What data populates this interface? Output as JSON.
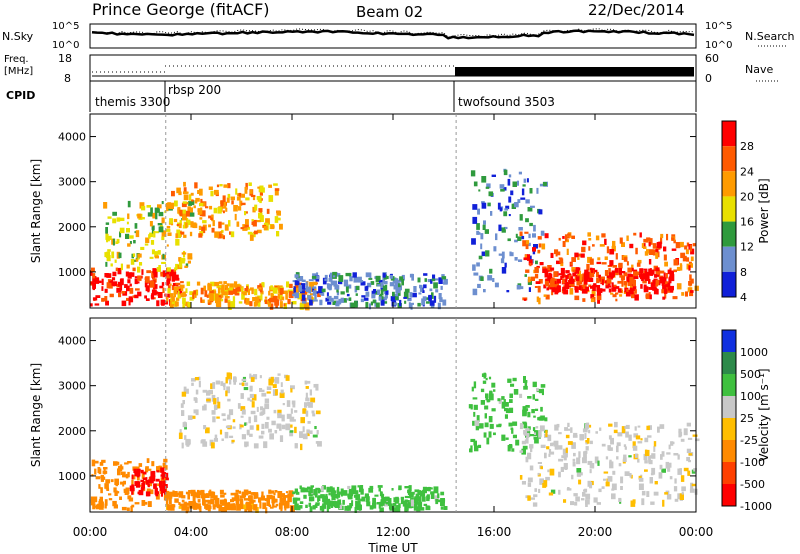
{
  "header": {
    "station": "Prince George (fitACF)",
    "beam": "Beam 02",
    "date": "22/Dec/2014"
  },
  "sky_panel": {
    "left_label": "N.Sky",
    "left_ticks": [
      "10^5",
      "10^0"
    ],
    "right_ticks": [
      "10^5",
      "10^0"
    ],
    "right_label": "N.Search"
  },
  "freq_panel": {
    "left_label_line1": "Freq.",
    "left_label_line2": "[MHz]",
    "left_ticks": [
      "18",
      "8"
    ],
    "right_ticks": [
      "60",
      "0"
    ],
    "right_label": "Nave"
  },
  "cpid_panel": {
    "label": "CPID",
    "programs": [
      {
        "name": "themis 3300",
        "start": "00:00"
      },
      {
        "name": "rbsp 200",
        "start": "03:00"
      },
      {
        "name": "twofsound 3503",
        "start": "14:30"
      }
    ]
  },
  "power_panel": {
    "ylabel": "Slant Range [km]",
    "colorbar_label": "Power [dB]",
    "colorbar_ticks": [
      "28",
      "24",
      "20",
      "16",
      "12",
      "8",
      "4"
    ],
    "colors": [
      "#ff0000",
      "#ff5a00",
      "#ff9b00",
      "#e8e000",
      "#2f9a3d",
      "#6d8fcf",
      "#1020d8"
    ]
  },
  "velocity_panel": {
    "ylabel": "Slant Range [km]",
    "colorbar_label": "Velocity [m s⁻¹]",
    "colorbar_ticks": [
      "1000",
      "500",
      "100",
      "25",
      "-25",
      "-100",
      "-500",
      "-1000"
    ],
    "colors": [
      "#1030e0",
      "#2d8a4a",
      "#3fc03f",
      "#c8c8c8",
      "#ffbe00",
      "#ff8a00",
      "#ff4000",
      "#ff0000"
    ]
  },
  "x_axis": {
    "label": "Time UT",
    "ticks": [
      "00:00",
      "04:00",
      "08:00",
      "12:00",
      "16:00",
      "20:00",
      "00:00"
    ]
  },
  "chart_data": {
    "type": "heatmap",
    "x_unit": "hours UT",
    "xlim": [
      0,
      24
    ],
    "ylim": [
      200,
      4500
    ],
    "y_ticks": [
      1000,
      2000,
      3000,
      4000
    ],
    "x_ticks": [
      0,
      4,
      8,
      12,
      16,
      20,
      24
    ],
    "scan_boundaries": [
      3.0,
      14.5
    ],
    "power_bands": [
      {
        "t0": 0.0,
        "t1": 3.5,
        "r0": 300,
        "r1": 1100,
        "level": 28
      },
      {
        "t0": 0.5,
        "t1": 4.0,
        "r0": 1100,
        "r1": 2600,
        "level": 16
      },
      {
        "t0": 3.0,
        "t1": 7.5,
        "r0": 1800,
        "r1": 3000,
        "level": 20
      },
      {
        "t0": 3.0,
        "t1": 9.0,
        "r0": 300,
        "r1": 800,
        "level": 20
      },
      {
        "t0": 8.0,
        "t1": 14.0,
        "r0": 300,
        "r1": 1000,
        "level": 8
      },
      {
        "t0": 15.0,
        "t1": 18.0,
        "r0": 500,
        "r1": 3300,
        "level": 8
      },
      {
        "t0": 17.0,
        "t1": 24.0,
        "r0": 400,
        "r1": 1900,
        "level": 24
      },
      {
        "t0": 18.0,
        "t1": 23.0,
        "r0": 600,
        "r1": 1100,
        "level": 28
      }
    ],
    "velocity_bands": [
      {
        "t0": 0.0,
        "t1": 3.0,
        "r0": 300,
        "r1": 1400,
        "level": -100
      },
      {
        "t0": 1.5,
        "t1": 3.0,
        "r0": 600,
        "r1": 1200,
        "level": -1000
      },
      {
        "t0": 3.0,
        "t1": 8.0,
        "r0": 300,
        "r1": 700,
        "level": -100
      },
      {
        "t0": 3.5,
        "t1": 9.0,
        "r0": 1700,
        "r1": 3300,
        "level": 25
      },
      {
        "t0": 8.0,
        "t1": 14.0,
        "r0": 300,
        "r1": 800,
        "level": 100
      },
      {
        "t0": 15.0,
        "t1": 18.0,
        "r0": 1600,
        "r1": 3300,
        "level": 100
      },
      {
        "t0": 17.0,
        "t1": 24.0,
        "r0": 400,
        "r1": 2200,
        "level": 25
      }
    ]
  }
}
